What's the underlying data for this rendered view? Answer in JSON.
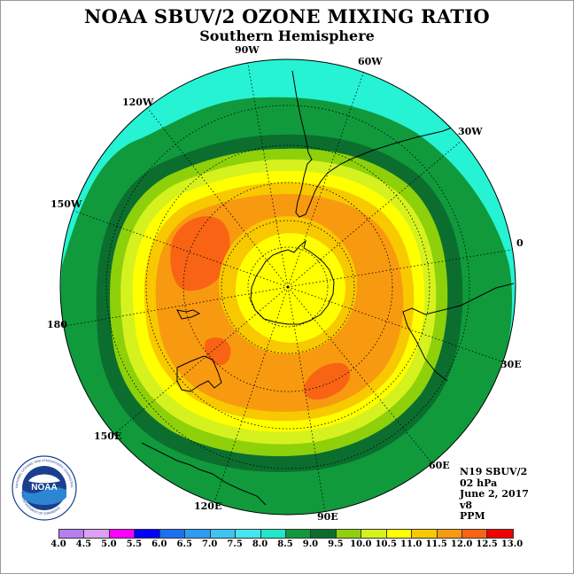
{
  "title": "NOAA SBUV/2 OZONE MIXING RATIO",
  "subtitle": "Southern Hemisphere",
  "longitude_labels": [
    "90W",
    "60W",
    "120W",
    "30W",
    "150W",
    "0",
    "180",
    "30E",
    "150E",
    "60E",
    "120E",
    "90E"
  ],
  "info": {
    "satellite": "N19 SBUV/2",
    "pressure": "02 hPa",
    "date": "June 2, 2017",
    "version": "v8",
    "units": "PPM"
  },
  "logo": {
    "text": "NOAA",
    "ring_text_top": "NATIONAL OCEANIC AND ATMOSPHERIC ADMINISTRATION",
    "ring_text_bottom": "U.S. DEPARTMENT OF COMMERCE"
  },
  "colorbar": {
    "ticks": [
      "4.0",
      "4.5",
      "5.0",
      "5.5",
      "6.0",
      "6.5",
      "7.0",
      "7.5",
      "8.0",
      "8.5",
      "9.0",
      "9.5",
      "10.0",
      "10.5",
      "11.0",
      "11.5",
      "12.0",
      "12.5",
      "13.0"
    ],
    "colors": [
      "#b77ef0",
      "#dca0f4",
      "#ff00ff",
      "#0000ff",
      "#1c6ff0",
      "#2e9cf4",
      "#3fc3f5",
      "#44e6f0",
      "#1ee8c8",
      "#109a3c",
      "#0c6e2e",
      "#8ed10a",
      "#d6f21e",
      "#ffff00",
      "#f8c800",
      "#f89a10",
      "#f86414",
      "#f00000",
      "#8b5a3c"
    ]
  }
}
